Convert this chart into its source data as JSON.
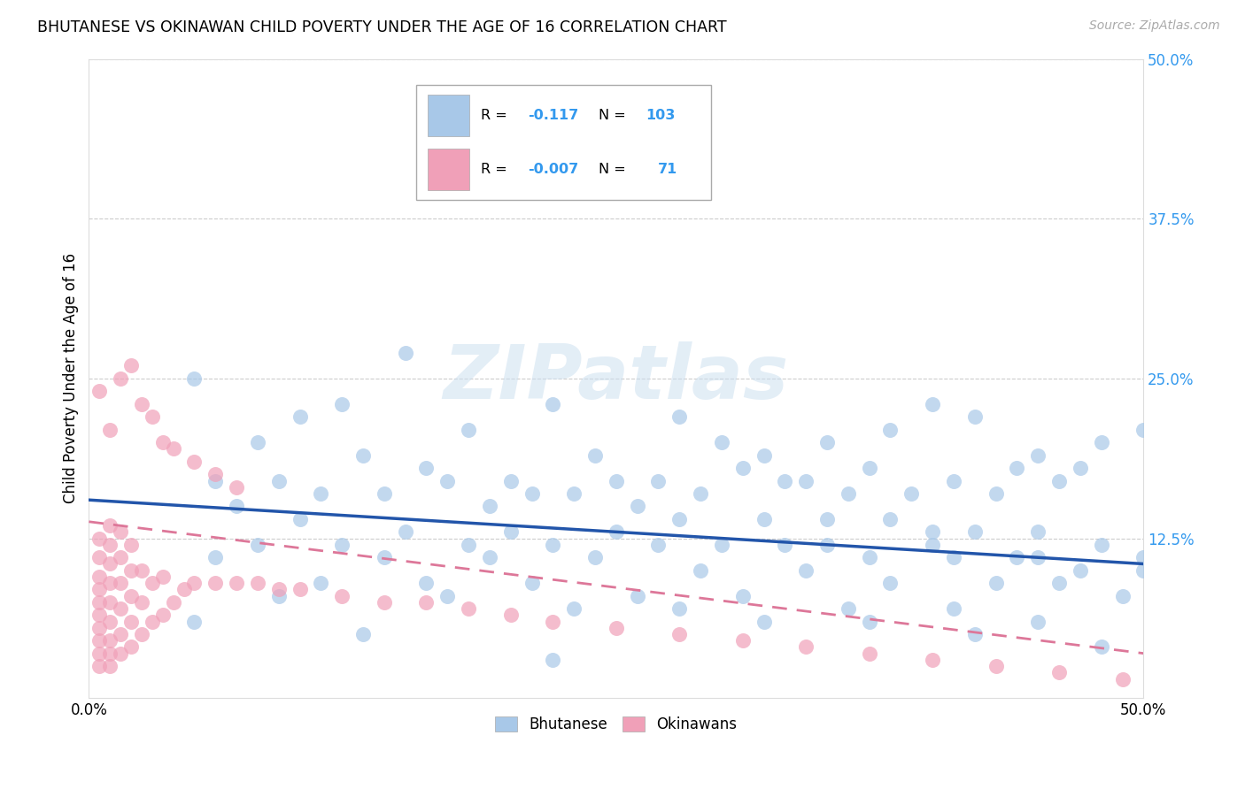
{
  "title": "BHUTANESE VS OKINAWAN CHILD POVERTY UNDER THE AGE OF 16 CORRELATION CHART",
  "source": "Source: ZipAtlas.com",
  "ylabel": "Child Poverty Under the Age of 16",
  "xlim": [
    0.0,
    0.5
  ],
  "ylim": [
    0.0,
    0.5
  ],
  "xtick_vals": [
    0.0,
    0.5
  ],
  "xtick_labels": [
    "0.0%",
    "50.0%"
  ],
  "right_ytick_vals": [
    0.5,
    0.375,
    0.25,
    0.125
  ],
  "right_ytick_labels": [
    "50.0%",
    "37.5%",
    "25.0%",
    "12.5%"
  ],
  "grid_ytick_vals": [
    0.5,
    0.375,
    0.25,
    0.125
  ],
  "legend_R_blue": "-0.117",
  "legend_N_blue": "103",
  "legend_R_pink": "-0.007",
  "legend_N_pink": "71",
  "blue_color": "#a8c8e8",
  "pink_color": "#f0a0b8",
  "blue_line_color": "#2255aa",
  "pink_line_color": "#dd7799",
  "watermark_text": "ZIPatlas",
  "blue_trend_x0": 0.0,
  "blue_trend_y0": 0.155,
  "blue_trend_x1": 0.5,
  "blue_trend_y1": 0.105,
  "pink_trend_x0": 0.0,
  "pink_trend_y0": 0.138,
  "pink_trend_x1": 0.5,
  "pink_trend_y1": 0.035,
  "blue_scatter_x": [
    0.26,
    0.05,
    0.1,
    0.15,
    0.08,
    0.12,
    0.18,
    0.22,
    0.28,
    0.3,
    0.32,
    0.35,
    0.38,
    0.4,
    0.42,
    0.45,
    0.48,
    0.5,
    0.06,
    0.09,
    0.13,
    0.16,
    0.2,
    0.24,
    0.27,
    0.31,
    0.34,
    0.37,
    0.41,
    0.44,
    0.47,
    0.11,
    0.14,
    0.17,
    0.21,
    0.25,
    0.29,
    0.33,
    0.36,
    0.39,
    0.43,
    0.46,
    0.07,
    0.19,
    0.23,
    0.26,
    0.28,
    0.32,
    0.35,
    0.38,
    0.4,
    0.42,
    0.45,
    0.48,
    0.5,
    0.1,
    0.15,
    0.2,
    0.25,
    0.3,
    0.35,
    0.4,
    0.45,
    0.5,
    0.08,
    0.12,
    0.18,
    0.22,
    0.27,
    0.33,
    0.37,
    0.41,
    0.44,
    0.47,
    0.06,
    0.14,
    0.19,
    0.24,
    0.29,
    0.34,
    0.38,
    0.43,
    0.46,
    0.49,
    0.11,
    0.16,
    0.21,
    0.26,
    0.31,
    0.36,
    0.41,
    0.45,
    0.09,
    0.17,
    0.23,
    0.28,
    0.32,
    0.37,
    0.42,
    0.48,
    0.05,
    0.13,
    0.22
  ],
  "blue_scatter_y": [
    0.44,
    0.25,
    0.22,
    0.27,
    0.2,
    0.23,
    0.21,
    0.23,
    0.22,
    0.2,
    0.19,
    0.2,
    0.21,
    0.23,
    0.22,
    0.19,
    0.2,
    0.21,
    0.17,
    0.17,
    0.19,
    0.18,
    0.17,
    0.19,
    0.17,
    0.18,
    0.17,
    0.18,
    0.17,
    0.18,
    0.18,
    0.16,
    0.16,
    0.17,
    0.16,
    0.17,
    0.16,
    0.17,
    0.16,
    0.16,
    0.16,
    0.17,
    0.15,
    0.15,
    0.16,
    0.15,
    0.14,
    0.14,
    0.14,
    0.14,
    0.13,
    0.13,
    0.13,
    0.12,
    0.11,
    0.14,
    0.13,
    0.13,
    0.13,
    0.12,
    0.12,
    0.12,
    0.11,
    0.1,
    0.12,
    0.12,
    0.12,
    0.12,
    0.12,
    0.12,
    0.11,
    0.11,
    0.11,
    0.1,
    0.11,
    0.11,
    0.11,
    0.11,
    0.1,
    0.1,
    0.09,
    0.09,
    0.09,
    0.08,
    0.09,
    0.09,
    0.09,
    0.08,
    0.08,
    0.07,
    0.07,
    0.06,
    0.08,
    0.08,
    0.07,
    0.07,
    0.06,
    0.06,
    0.05,
    0.04,
    0.06,
    0.05,
    0.03
  ],
  "pink_scatter_x": [
    0.005,
    0.005,
    0.005,
    0.005,
    0.005,
    0.005,
    0.005,
    0.005,
    0.005,
    0.005,
    0.01,
    0.01,
    0.01,
    0.01,
    0.01,
    0.01,
    0.01,
    0.01,
    0.01,
    0.015,
    0.015,
    0.015,
    0.015,
    0.015,
    0.015,
    0.02,
    0.02,
    0.02,
    0.02,
    0.02,
    0.025,
    0.025,
    0.025,
    0.03,
    0.03,
    0.035,
    0.035,
    0.04,
    0.045,
    0.05,
    0.06,
    0.07,
    0.08,
    0.09,
    0.1,
    0.12,
    0.14,
    0.16,
    0.18,
    0.2,
    0.22,
    0.25,
    0.28,
    0.31,
    0.34,
    0.37,
    0.4,
    0.43,
    0.46,
    0.49,
    0.005,
    0.01,
    0.015,
    0.02,
    0.025,
    0.03,
    0.035,
    0.04,
    0.05,
    0.06,
    0.07
  ],
  "pink_scatter_y": [
    0.025,
    0.035,
    0.045,
    0.055,
    0.065,
    0.075,
    0.085,
    0.095,
    0.11,
    0.125,
    0.025,
    0.035,
    0.045,
    0.06,
    0.075,
    0.09,
    0.105,
    0.12,
    0.135,
    0.035,
    0.05,
    0.07,
    0.09,
    0.11,
    0.13,
    0.04,
    0.06,
    0.08,
    0.1,
    0.12,
    0.05,
    0.075,
    0.1,
    0.06,
    0.09,
    0.065,
    0.095,
    0.075,
    0.085,
    0.09,
    0.09,
    0.09,
    0.09,
    0.085,
    0.085,
    0.08,
    0.075,
    0.075,
    0.07,
    0.065,
    0.06,
    0.055,
    0.05,
    0.045,
    0.04,
    0.035,
    0.03,
    0.025,
    0.02,
    0.015,
    0.24,
    0.21,
    0.25,
    0.26,
    0.23,
    0.22,
    0.2,
    0.195,
    0.185,
    0.175,
    0.165
  ]
}
